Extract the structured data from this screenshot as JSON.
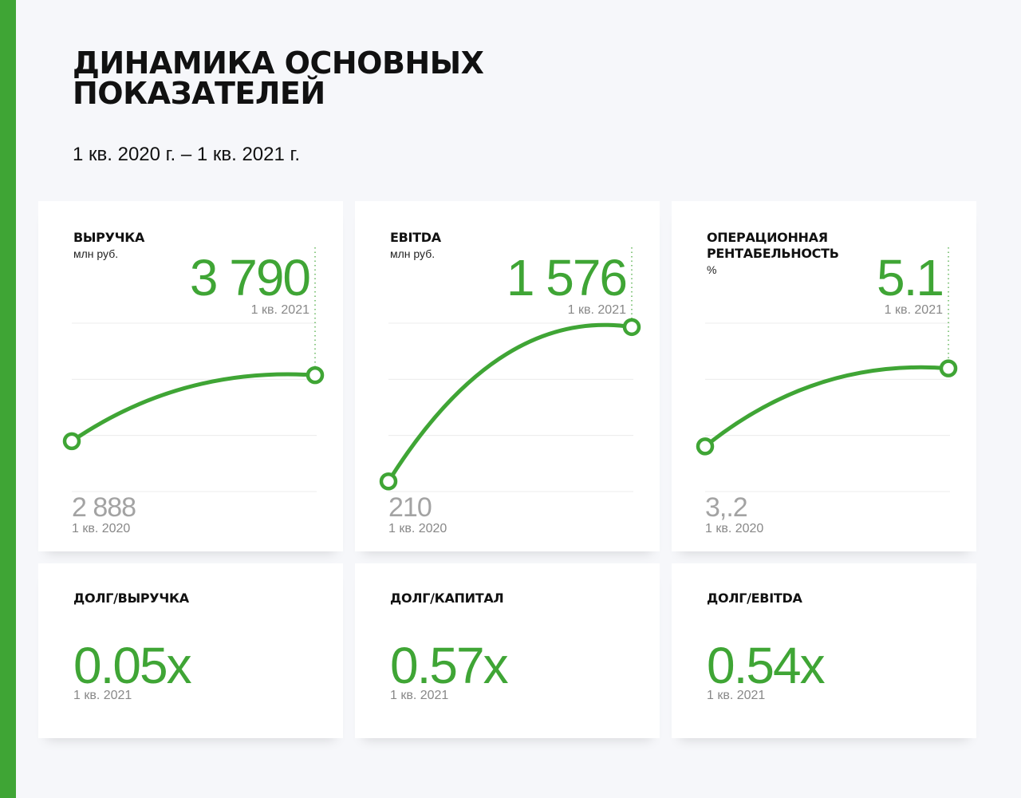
{
  "header": {
    "title": "ДИНАМИКА ОСНОВНЫХ ПОКАЗАТЕЛЕЙ",
    "subtitle": "1 кв. 2020 г. – 1 кв. 2021 г."
  },
  "colors": {
    "accent": "#3fa535",
    "muted": "#a3a3a3",
    "label": "#888888",
    "card": "#ffffff",
    "background": "#f6f7fa"
  },
  "chart_data": [
    {
      "type": "line",
      "title": "ВЫРУЧКА",
      "unit": "млн руб.",
      "x": [
        "1 кв. 2020",
        "1 кв. 2021"
      ],
      "values": [
        2888,
        3790
      ],
      "start_display": "2 888",
      "end_display": "3 790",
      "grid": true
    },
    {
      "type": "line",
      "title": "EBITDA",
      "unit": "млн руб.",
      "x": [
        "1 кв. 2020",
        "1 кв. 2021"
      ],
      "values": [
        210,
        1576
      ],
      "start_display": "210",
      "end_display": "1 576",
      "grid": true
    },
    {
      "type": "line",
      "title": "ОПЕРАЦИОННАЯ РЕНТАБЕЛЬНОСТЬ",
      "unit": "%",
      "x": [
        "1 кв. 2020",
        "1 кв. 2021"
      ],
      "values": [
        3.2,
        5.1
      ],
      "start_display": "3,.2",
      "end_display": "5.1",
      "grid": true
    }
  ],
  "ratios": [
    {
      "title": "ДОЛГ/ВЫРУЧКА",
      "value": "0.05x",
      "label": "1 кв. 2021"
    },
    {
      "title": "ДОЛГ/КАПИТАЛ",
      "value": "0.57x",
      "label": "1 кв. 2021"
    },
    {
      "title": "ДОЛГ/EBITDA",
      "value": "0.54x",
      "label": "1 кв. 2021"
    }
  ]
}
